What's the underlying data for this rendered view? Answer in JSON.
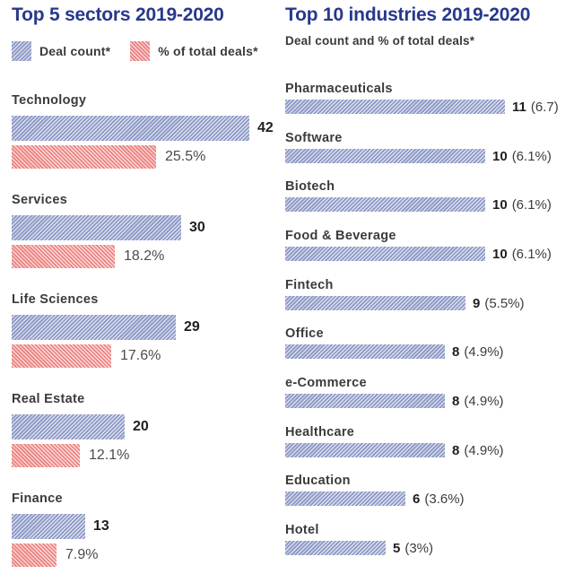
{
  "colors": {
    "title_navy": "#28388c",
    "blue_bar": "#9aa5ce",
    "red_bar": "#f09d9b",
    "label_gray": "#3b3b3b",
    "count_black": "#1f1f1f",
    "pct_gray": "#4c4c4c"
  },
  "left_panel": {
    "title": "Top 5 sectors 2019-2020",
    "legend": [
      {
        "label": "Deal count*",
        "swatch": "blue-hatch"
      },
      {
        "label": "% of total deals*",
        "swatch": "red-hatch"
      }
    ],
    "items": [
      {
        "label": "Technology",
        "count": 42,
        "count_label": "42",
        "pct": 25.5,
        "pct_label": "25.5%"
      },
      {
        "label": "Services",
        "count": 30,
        "count_label": "30",
        "pct": 18.2,
        "pct_label": "18.2%"
      },
      {
        "label": "Life Sciences",
        "count": 29,
        "count_label": "29",
        "pct": 17.6,
        "pct_label": "17.6%"
      },
      {
        "label": "Real Estate",
        "count": 20,
        "count_label": "20",
        "pct": 12.1,
        "pct_label": "12.1%"
      },
      {
        "label": "Finance",
        "count": 13,
        "count_label": "13",
        "pct": 7.9,
        "pct_label": "7.9%"
      }
    ]
  },
  "right_panel": {
    "title": "Top 10 industries 2019-2020",
    "subtitle": "Deal count and % of total deals*",
    "items": [
      {
        "label": "Pharmaceuticals",
        "count": 11,
        "count_label": "11",
        "paren_label": "(6.7)"
      },
      {
        "label": "Software",
        "count": 10,
        "count_label": "10",
        "paren_label": "(6.1%)"
      },
      {
        "label": "Biotech",
        "count": 10,
        "count_label": "10",
        "paren_label": "(6.1%)"
      },
      {
        "label": "Food & Beverage",
        "count": 10,
        "count_label": "10",
        "paren_label": "(6.1%)"
      },
      {
        "label": "Fintech",
        "count": 9,
        "count_label": "9",
        "paren_label": "(5.5%)"
      },
      {
        "label": "Office",
        "count": 8,
        "count_label": "8",
        "paren_label": "(4.9%)"
      },
      {
        "label": "e-Commerce",
        "count": 8,
        "count_label": "8",
        "paren_label": "(4.9%)"
      },
      {
        "label": "Healthcare",
        "count": 8,
        "count_label": "8",
        "paren_label": "(4.9%)"
      },
      {
        "label": "Education",
        "count": 6,
        "count_label": "6",
        "paren_label": "(3.6%)"
      },
      {
        "label": "Hotel",
        "count": 5,
        "count_label": "5",
        "paren_label": "(3%)"
      }
    ]
  },
  "chart_data": [
    {
      "type": "bar",
      "orientation": "horizontal",
      "title": "Top 5 sectors 2019-2020",
      "categories": [
        "Technology",
        "Services",
        "Life Sciences",
        "Real Estate",
        "Finance"
      ],
      "series": [
        {
          "name": "Deal count*",
          "color": "#9aa5ce",
          "pattern": "diagonal-hatch",
          "values": [
            42,
            30,
            29,
            20,
            13
          ]
        },
        {
          "name": "% of total deals*",
          "color": "#f09d9b",
          "pattern": "diagonal-hatch",
          "values": [
            25.5,
            18.2,
            17.6,
            12.1,
            7.9
          ]
        }
      ],
      "xlabel": "",
      "ylabel": "",
      "xlim": [
        0,
        45
      ],
      "grid": false,
      "legend_position": "top-left",
      "data_labels": [
        "42 / 25.5%",
        "30 / 18.2%",
        "29 / 17.6%",
        "20 / 12.1%",
        "13 / 7.9%"
      ]
    },
    {
      "type": "bar",
      "orientation": "horizontal",
      "title": "Top 10 industries 2019-2020",
      "subtitle": "Deal count and % of total deals*",
      "categories": [
        "Pharmaceuticals",
        "Software",
        "Biotech",
        "Food & Beverage",
        "Fintech",
        "Office",
        "e-Commerce",
        "Healthcare",
        "Education",
        "Hotel"
      ],
      "series": [
        {
          "name": "Deal count",
          "color": "#9aa5ce",
          "pattern": "diagonal-hatch",
          "values": [
            11,
            10,
            10,
            10,
            9,
            8,
            8,
            8,
            6,
            5
          ]
        },
        {
          "name": "% of total deals",
          "values": [
            6.7,
            6.1,
            6.1,
            6.1,
            5.5,
            4.9,
            4.9,
            4.9,
            3.6,
            3.0
          ]
        }
      ],
      "xlabel": "",
      "ylabel": "",
      "xlim": [
        0,
        12
      ],
      "grid": false,
      "data_labels": [
        "11 (6.7)",
        "10 (6.1%)",
        "10 (6.1%)",
        "10 (6.1%)",
        "9 (5.5%)",
        "8 (4.9%)",
        "8 (4.9%)",
        "8 (4.9%)",
        "6 (3.6%)",
        "5 (3%)"
      ]
    }
  ]
}
